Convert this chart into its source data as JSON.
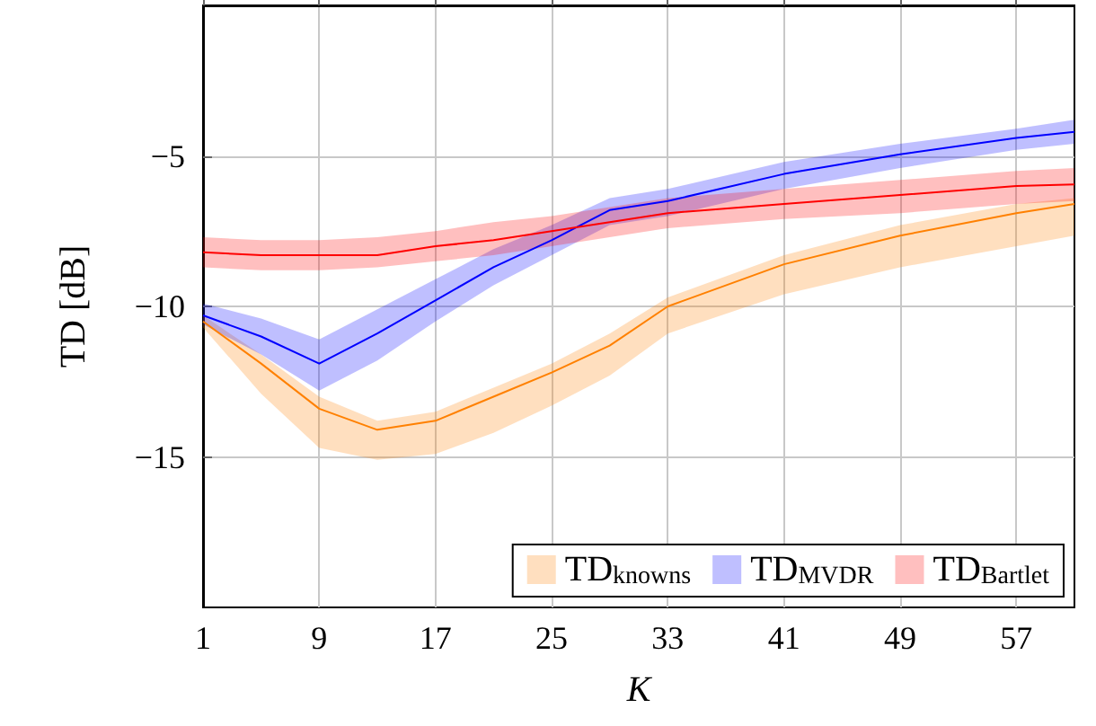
{
  "chart_data": {
    "type": "line",
    "xlabel": "K",
    "ylabel": "TD [dB]",
    "xlim": [
      1,
      61
    ],
    "ylim": [
      -20,
      0
    ],
    "xticks": [
      1,
      9,
      17,
      25,
      33,
      41,
      49,
      57
    ],
    "yticks": [
      -15,
      -10,
      -5
    ],
    "grid": true,
    "legend": "bottom right",
    "marker": "none",
    "line_style": "solid",
    "x": [
      1,
      5,
      9,
      13,
      17,
      21,
      25,
      29,
      33,
      41,
      49,
      57,
      61
    ],
    "series": [
      {
        "name": "TD$_{knowns}$",
        "color": "#ff8000",
        "values": [
          -10.5,
          -11.9,
          -13.4,
          -14.1,
          -13.8,
          -13.0,
          -12.2,
          -11.3,
          -10.0,
          -8.6,
          -7.65,
          -6.9,
          -6.6
        ],
        "lower": [
          -10.7,
          -12.9,
          -14.7,
          -15.1,
          -14.9,
          -14.2,
          -13.3,
          -12.3,
          -10.9,
          -9.6,
          -8.7,
          -8.0,
          -7.65
        ],
        "upper": [
          -10.3,
          -11.6,
          -13.0,
          -13.8,
          -13.5,
          -12.7,
          -11.9,
          -10.9,
          -9.7,
          -8.3,
          -7.3,
          -6.6,
          -6.4
        ]
      },
      {
        "name": "TD$_{MVDR}$",
        "color": "#0000ff",
        "values": [
          -10.3,
          -11.0,
          -11.9,
          -10.9,
          -9.8,
          -8.7,
          -7.8,
          -6.8,
          -6.5,
          -5.6,
          -4.95,
          -4.4,
          -4.2
        ],
        "lower": [
          -10.6,
          -11.6,
          -12.8,
          -11.8,
          -10.5,
          -9.3,
          -8.3,
          -7.3,
          -7.0,
          -6.1,
          -5.4,
          -4.8,
          -4.6
        ],
        "upper": [
          -9.9,
          -10.4,
          -11.1,
          -10.1,
          -9.1,
          -8.1,
          -7.3,
          -6.4,
          -6.1,
          -5.2,
          -4.6,
          -4.1,
          -3.8
        ]
      },
      {
        "name": "TD$_{Bartlet}$",
        "color": "#ff0000",
        "values": [
          -8.2,
          -8.3,
          -8.3,
          -8.3,
          -8.0,
          -7.8,
          -7.5,
          -7.2,
          -6.9,
          -6.6,
          -6.3,
          -6.0,
          -5.95
        ],
        "lower": [
          -8.7,
          -8.8,
          -8.8,
          -8.7,
          -8.5,
          -8.3,
          -8.0,
          -7.7,
          -7.4,
          -7.1,
          -6.9,
          -6.6,
          -6.5
        ],
        "upper": [
          -7.7,
          -7.8,
          -7.8,
          -7.7,
          -7.5,
          -7.2,
          -7.0,
          -6.7,
          -6.4,
          -6.1,
          -5.8,
          -5.5,
          -5.4
        ]
      }
    ]
  }
}
